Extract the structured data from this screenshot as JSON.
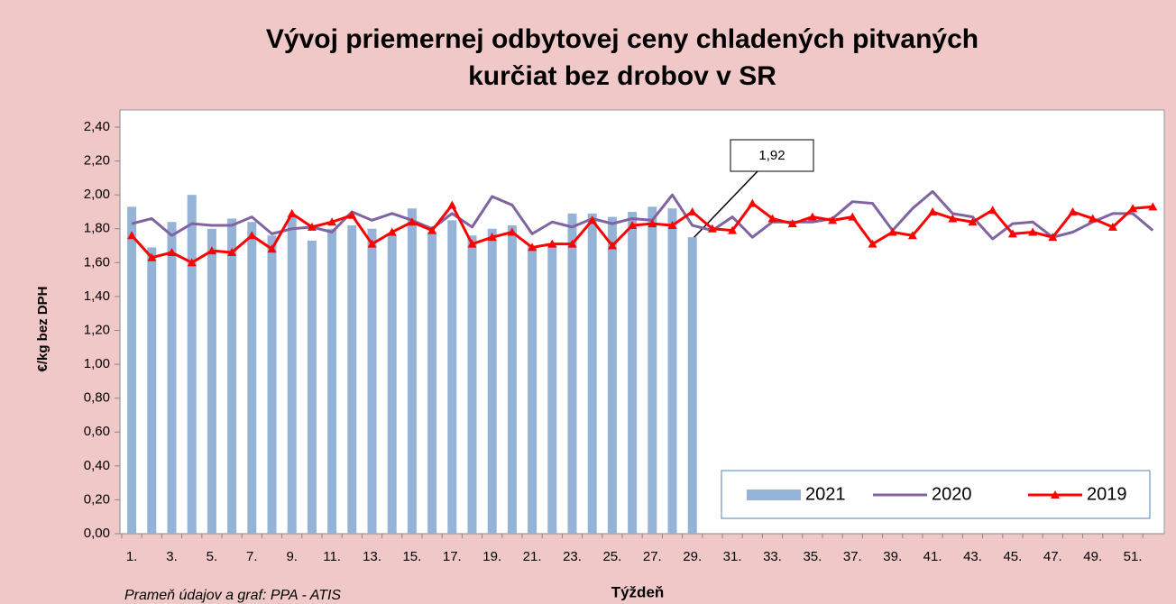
{
  "chart_data": {
    "type": "bar_line",
    "title": [
      "Vývoj priemernej odbytovej ceny chladených pitvaných",
      "kurčiat bez drobov v SR"
    ],
    "y_label": "€/kg bez DPH",
    "x_label": "Týždeň",
    "source": "Prameň údajov a graf: PPA - ATIS",
    "annotation": "1,92",
    "categories": [
      "1.",
      null,
      "3.",
      null,
      "5.",
      null,
      "7.",
      null,
      "9.",
      null,
      "11.",
      null,
      "13.",
      null,
      "15.",
      null,
      "17.",
      null,
      "19.",
      null,
      "21.",
      null,
      "23.",
      null,
      "25.",
      null,
      "27.",
      null,
      "29.",
      null,
      "31.",
      null,
      "33.",
      null,
      "35.",
      null,
      "37.",
      null,
      "39.",
      null,
      "41.",
      null,
      "43.",
      null,
      "45.",
      null,
      "47.",
      null,
      "49.",
      null,
      "51.",
      null
    ],
    "ylim": [
      0,
      2.4
    ],
    "yticks": [
      {
        "value": 0,
        "label": "0,00"
      },
      {
        "value": 0.2,
        "label": "0,20"
      },
      {
        "value": 0.4,
        "label": "0,40"
      },
      {
        "value": 0.6,
        "label": "0,60"
      },
      {
        "value": 0.8,
        "label": "0,80"
      },
      {
        "value": 1.0,
        "label": "1,00"
      },
      {
        "value": 1.2,
        "label": "1,20"
      },
      {
        "value": 1.4,
        "label": "1,40"
      },
      {
        "value": 1.6,
        "label": "1,60"
      },
      {
        "value": 1.8,
        "label": "1,80"
      },
      {
        "value": 2.0,
        "label": "2,00"
      },
      {
        "value": 2.2,
        "label": "2,20"
      },
      {
        "value": 2.4,
        "label": "2,40"
      }
    ],
    "grid": false,
    "legend": "bottom-right",
    "series": [
      {
        "name": "2021",
        "kind": "bar",
        "color": "#95b3d7",
        "values": [
          1.93,
          1.69,
          1.84,
          2.0,
          1.8,
          1.86,
          1.84,
          1.76,
          1.87,
          1.73,
          1.8,
          1.82,
          1.8,
          1.76,
          1.92,
          1.78,
          1.85,
          1.76,
          1.8,
          1.82,
          1.7,
          1.7,
          1.89,
          1.89,
          1.87,
          1.9,
          1.93,
          1.92,
          1.75,
          null,
          null,
          null,
          null,
          null,
          null,
          null,
          null,
          null,
          null,
          null,
          null,
          null,
          null,
          null,
          null,
          null,
          null,
          null,
          null,
          null,
          null,
          null
        ]
      },
      {
        "name": "2020",
        "kind": "line",
        "color": "#8064a2",
        "values": [
          1.83,
          1.86,
          1.76,
          1.83,
          1.82,
          1.82,
          1.87,
          1.77,
          1.8,
          1.81,
          1.78,
          1.9,
          1.85,
          1.89,
          1.85,
          1.8,
          1.89,
          1.81,
          1.99,
          1.94,
          1.77,
          1.84,
          1.81,
          1.86,
          1.83,
          1.86,
          1.85,
          2.0,
          1.82,
          1.79,
          1.87,
          1.75,
          1.84,
          1.84,
          1.84,
          1.86,
          1.96,
          1.95,
          1.79,
          1.92,
          2.02,
          1.89,
          1.87,
          1.74,
          1.83,
          1.84,
          1.75,
          1.78,
          1.84,
          1.89,
          1.89,
          1.79
        ]
      },
      {
        "name": "2019",
        "kind": "line_marker",
        "color": "#ff0000",
        "values": [
          1.76,
          1.63,
          1.66,
          1.6,
          1.67,
          1.66,
          1.76,
          1.68,
          1.89,
          1.81,
          1.84,
          1.88,
          1.71,
          1.78,
          1.84,
          1.79,
          1.94,
          1.71,
          1.75,
          1.78,
          1.69,
          1.71,
          1.71,
          1.85,
          1.7,
          1.82,
          1.83,
          1.82,
          1.9,
          1.8,
          1.79,
          1.95,
          1.86,
          1.83,
          1.87,
          1.85,
          1.87,
          1.71,
          1.78,
          1.76,
          1.9,
          1.86,
          1.84,
          1.91,
          1.77,
          1.78,
          1.75,
          1.9,
          1.86,
          1.81,
          1.92,
          1.93
        ]
      }
    ]
  }
}
